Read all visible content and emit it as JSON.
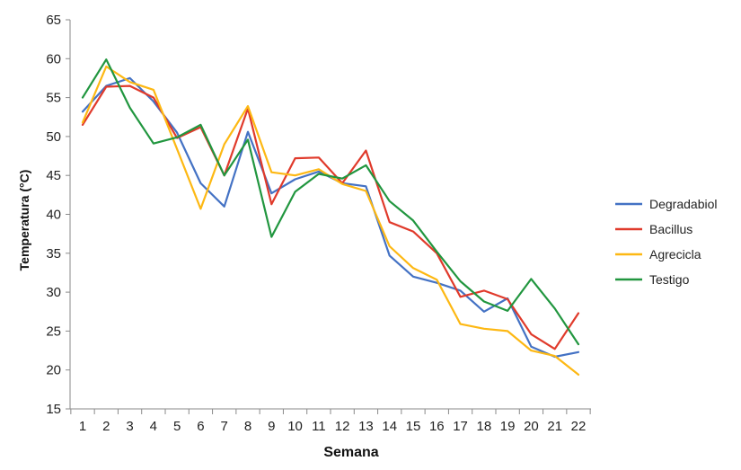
{
  "chart_data": {
    "type": "line",
    "title": "",
    "xlabel": "Semana",
    "ylabel": "Temperatura (°C)",
    "categories": [
      "1",
      "2",
      "3",
      "4",
      "5",
      "6",
      "7",
      "8",
      "9",
      "10",
      "11",
      "12",
      "13",
      "14",
      "15",
      "16",
      "17",
      "18",
      "19",
      "20",
      "21",
      "22"
    ],
    "ylim": [
      15,
      65
    ],
    "yticks": [
      15,
      20,
      25,
      30,
      35,
      40,
      45,
      50,
      55,
      60,
      65
    ],
    "grid": false,
    "legend_position": "right",
    "series": [
      {
        "name": "Degradabiol",
        "color": "#4472C4",
        "values": [
          53.2,
          56.5,
          57.5,
          54.5,
          50.5,
          44.0,
          41.0,
          50.6,
          42.7,
          44.5,
          45.5,
          44.0,
          43.6,
          34.7,
          32.0,
          31.2,
          30.2,
          27.5,
          29.2,
          23.0,
          21.7,
          22.3
        ]
      },
      {
        "name": "Bacillus",
        "color": "#E03A2B",
        "values": [
          51.5,
          56.4,
          56.5,
          55.0,
          49.8,
          51.2,
          45.0,
          53.6,
          41.3,
          47.2,
          47.3,
          44.0,
          48.2,
          39.0,
          37.8,
          35.0,
          29.4,
          30.2,
          29.1,
          24.6,
          22.7,
          27.3
        ]
      },
      {
        "name": "Agrecicla",
        "color": "#FDB813",
        "values": [
          51.8,
          59.0,
          57.0,
          56.0,
          48.4,
          40.7,
          49.0,
          53.9,
          45.4,
          45.0,
          45.8,
          43.9,
          43.0,
          35.9,
          33.1,
          31.6,
          25.9,
          25.3,
          25.0,
          22.5,
          21.8,
          19.4
        ]
      },
      {
        "name": "Testigo",
        "color": "#21963F",
        "values": [
          55.0,
          59.9,
          53.7,
          49.1,
          49.9,
          51.5,
          45.0,
          49.6,
          37.1,
          42.9,
          45.2,
          44.6,
          46.3,
          41.7,
          39.2,
          35.2,
          31.4,
          28.8,
          27.6,
          31.7,
          27.9,
          23.3
        ]
      }
    ]
  }
}
